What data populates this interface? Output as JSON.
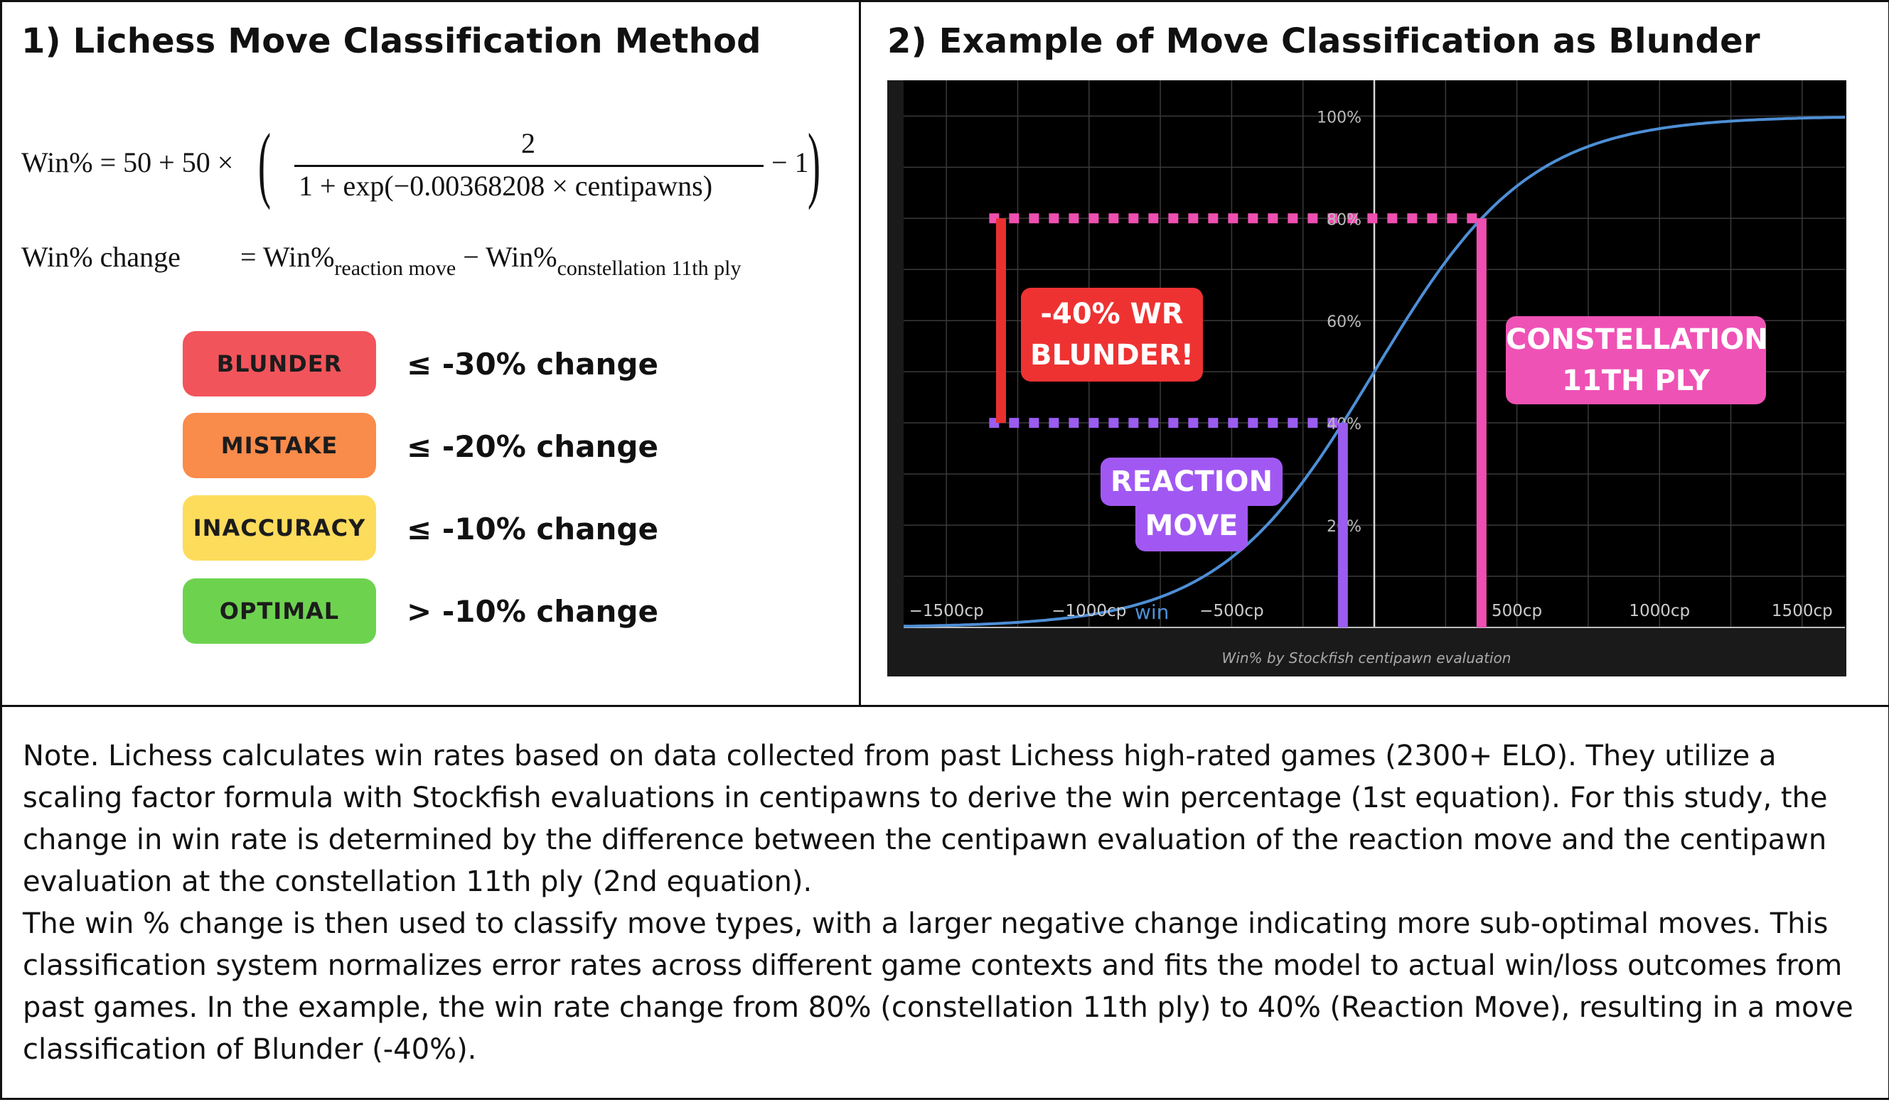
{
  "left_panel": {
    "title": "1) Lichess Move Classification Method",
    "eq1": {
      "lhs": "Win% = 50 + 50 ×",
      "numerator": "2",
      "denominator": "1 + exp(−0.00368208 × centipawns)",
      "tail": "− 1"
    },
    "eq2": {
      "lhs": "Win% change",
      "eq": "= Win%",
      "sub1": "reaction move",
      "minus": "− Win%",
      "sub2": "constellation 11th ply"
    },
    "classes": [
      {
        "label": "BLUNDER",
        "threshold": "≤ -30%  change",
        "color": "#f2545b"
      },
      {
        "label": "MISTAKE",
        "threshold": "≤ -20%  change",
        "color": "#f98b4b"
      },
      {
        "label": "INACCURACY",
        "threshold": "≤ -10%  change",
        "color": "#fddc5c"
      },
      {
        "label": "OPTIMAL",
        "threshold": "> -10%  change",
        "color": "#6dd34f"
      }
    ]
  },
  "right_panel": {
    "title": "2) Example of Move Classification as Blunder",
    "callouts": {
      "blunder_line1": "-40%  WR",
      "blunder_line2": "BLUNDER!",
      "constellation_line1": "CONSTELLATION",
      "constellation_line2": "11TH PLY",
      "reaction_line1": "REACTION",
      "reaction_line2": "MOVE"
    },
    "colors": {
      "curve": "#4e8fd6",
      "pink": "#ee4fb1",
      "purple": "#9b5cf0",
      "red": "#e83030"
    }
  },
  "chart_data": {
    "type": "line",
    "x_ticks": [
      "−1500cp",
      "−1000cp",
      "−500cp",
      "500cp",
      "1000cp",
      "1500cp"
    ],
    "x_tick_values": [
      -1500,
      -1000,
      -500,
      500,
      1000,
      1500
    ],
    "y_ticks": [
      "100%",
      "80%",
      "60%",
      "40%",
      "20%"
    ],
    "y_tick_values": [
      100,
      80,
      60,
      40,
      20
    ],
    "xlim": [
      -1650,
      1650
    ],
    "ylim": [
      0,
      107
    ],
    "series": [
      {
        "name": "win",
        "formula": "50 + 50 * (2 / (1 + exp(-0.00368208 * x)) - 1)"
      }
    ],
    "xlabel": "Win% by Stockfish centipawn evaluation",
    "reaction_move": {
      "x": -110,
      "y": 40
    },
    "constellation_11th_ply": {
      "x": 376,
      "y": 80
    },
    "win_rate_change": -40
  },
  "note": {
    "p1": "Note. Lichess calculates win rates based on data collected from past Lichess high-rated games (2300+ ELO). They utilize a scaling factor formula with Stockfish evaluations in centipawns to derive the win percentage (1st equation). For this study, the change in win rate is determined by the difference between the centipawn evaluation of the reaction move and the centipawn evaluation at the constellation 11th ply (2nd equation).",
    "p2": "The win % change is then used to classify move types, with a larger negative change indicating more sub-optimal moves. This classification system normalizes error rates across different game contexts and fits the model to actual win/loss outcomes from past games. In the example, the win rate change from 80% (constellation 11th ply) to 40% (Reaction Move), resulting in a move classification of Blunder (-40%)."
  }
}
